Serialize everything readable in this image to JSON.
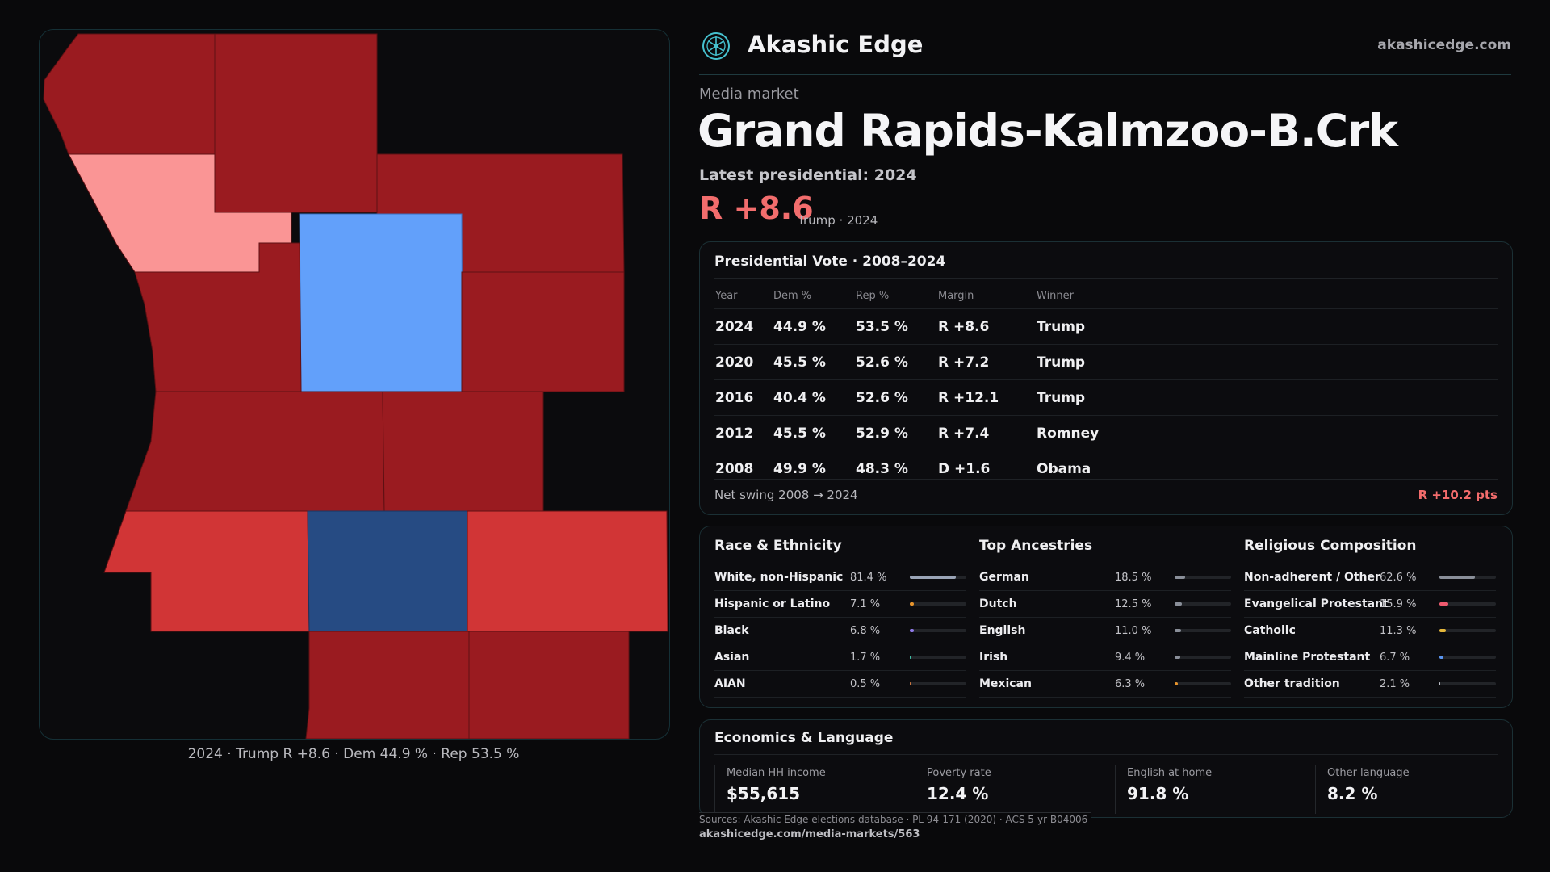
{
  "header": {
    "brand": "Akashic Edge",
    "site": "akashicedge.com"
  },
  "market": {
    "kicker": "Media market",
    "title": "Grand Rapids-Kalmzoo-B.Crk",
    "latest_label": "Latest presidential: 2024",
    "margin": "R +8.6",
    "margin_sub": "Trump · 2024"
  },
  "map": {
    "caption": "2024 · Trump R +8.6 · Dem 44.9 % · Rep 53.5 %"
  },
  "presidential": {
    "title": "Presidential Vote · 2008–2024",
    "columns": [
      "Year",
      "Dem %",
      "Rep %",
      "Margin",
      "Winner"
    ],
    "rows": [
      {
        "year": "2024",
        "dem": "44.9 %",
        "rep": "53.5 %",
        "margin": "R +8.6",
        "winner": "Trump"
      },
      {
        "year": "2020",
        "dem": "45.5 %",
        "rep": "52.6 %",
        "margin": "R +7.2",
        "winner": "Trump"
      },
      {
        "year": "2016",
        "dem": "40.4 %",
        "rep": "52.6 %",
        "margin": "R +12.1",
        "winner": "Trump"
      },
      {
        "year": "2012",
        "dem": "45.5 %",
        "rep": "52.9 %",
        "margin": "R +7.4",
        "winner": "Romney"
      },
      {
        "year": "2008",
        "dem": "49.9 %",
        "rep": "48.3 %",
        "margin": "D +1.6",
        "winner": "Obama"
      }
    ],
    "swing_label": "Net swing 2008 → 2024",
    "swing_value": "R +10.2 pts"
  },
  "race": {
    "title": "Race & Ethnicity",
    "items": [
      {
        "label": "White, non-Hispanic",
        "pct": "81.4 %",
        "fill": 0.814,
        "color": "#9aa4b6"
      },
      {
        "label": "Hispanic or Latino",
        "pct": "7.1 %",
        "fill": 0.071,
        "color": "#e8942c"
      },
      {
        "label": "Black",
        "pct": "6.8 %",
        "fill": 0.068,
        "color": "#8f7ae8"
      },
      {
        "label": "Asian",
        "pct": "1.7 %",
        "fill": 0.017,
        "color": "#3fbfa6"
      },
      {
        "label": "AIAN",
        "pct": "0.5 %",
        "fill": 0.005,
        "color": "#c8743e"
      }
    ]
  },
  "ancestry": {
    "title": "Top Ancestries",
    "items": [
      {
        "label": "German",
        "pct": "18.5 %",
        "fill": 0.185,
        "color": "#8a8f99"
      },
      {
        "label": "Dutch",
        "pct": "12.5 %",
        "fill": 0.125,
        "color": "#8a8f99"
      },
      {
        "label": "English",
        "pct": "11.0 %",
        "fill": 0.11,
        "color": "#8a8f99"
      },
      {
        "label": "Irish",
        "pct": "9.4 %",
        "fill": 0.094,
        "color": "#8a8f99"
      },
      {
        "label": "Mexican",
        "pct": "6.3 %",
        "fill": 0.063,
        "color": "#e8942c"
      }
    ]
  },
  "religion": {
    "title": "Religious Composition",
    "items": [
      {
        "label": "Non-adherent / Other",
        "pct": "62.6 %",
        "fill": 0.626,
        "color": "#8a8f99"
      },
      {
        "label": "Evangelical Protestant",
        "pct": "15.9 %",
        "fill": 0.159,
        "color": "#ef5a6f"
      },
      {
        "label": "Catholic",
        "pct": "11.3 %",
        "fill": 0.113,
        "color": "#e5b73b"
      },
      {
        "label": "Mainline Protestant",
        "pct": "6.7 %",
        "fill": 0.067,
        "color": "#5a95f0"
      },
      {
        "label": "Other tradition",
        "pct": "2.1 %",
        "fill": 0.021,
        "color": "#b9bcc4"
      }
    ]
  },
  "economics": {
    "title": "Economics & Language",
    "stats": [
      {
        "label": "Median HH income",
        "value": "$55,615"
      },
      {
        "label": "Poverty rate",
        "value": "12.4 %"
      },
      {
        "label": "English at home",
        "value": "91.8 %"
      },
      {
        "label": "Other language",
        "value": "8.2 %"
      }
    ]
  },
  "footer": {
    "sources": "Sources: Akashic Edge elections database · PL 94-171 (2020) · ACS 5-yr B04006",
    "url": "akashicedge.com/media-markets/563"
  },
  "colors": {
    "rep_strong": "#9a1b20",
    "rep_mid": "#d13536",
    "rep_light": "#fa9595",
    "dem_strong": "#264b83",
    "dem_light": "#62a0fa"
  }
}
